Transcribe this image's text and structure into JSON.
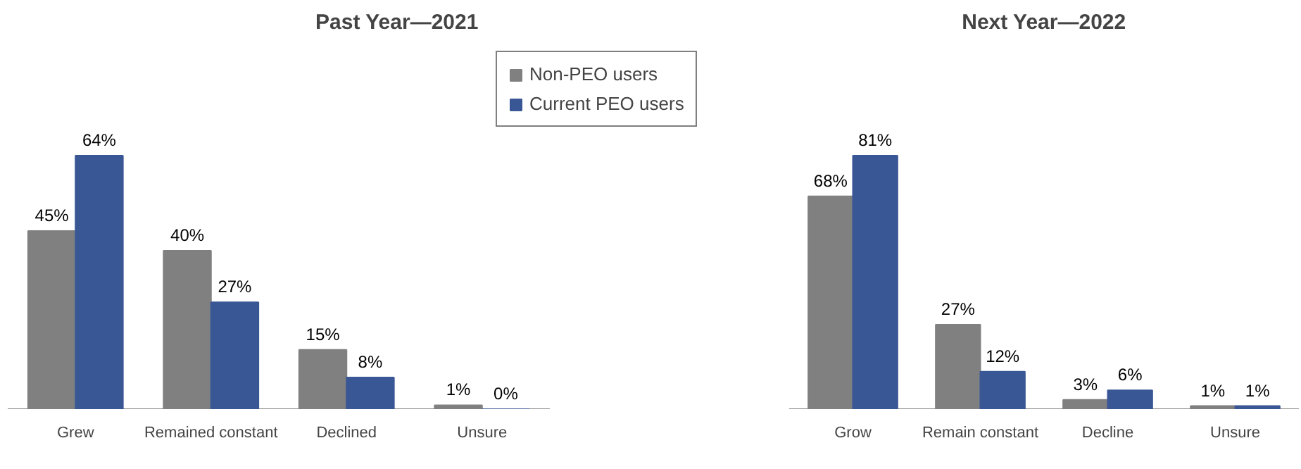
{
  "chart_data": [
    {
      "type": "bar",
      "title": "Past Year—2021",
      "categories": [
        "Grew",
        "Remained constant",
        "Declined",
        "Unsure"
      ],
      "legend": "top right",
      "grid": false,
      "series": [
        {
          "name": "Non-PEO users",
          "color": "#808080",
          "values": [
            45,
            40,
            15,
            1
          ],
          "value_labels": [
            "45%",
            "40%",
            "15%",
            "1%"
          ]
        },
        {
          "name": "Current PEO users",
          "color": "#3a5795",
          "values": [
            64,
            27,
            8,
            0
          ],
          "value_labels": [
            "64%",
            "27%",
            "8%",
            "0%"
          ]
        }
      ]
    },
    {
      "type": "bar",
      "title": "Next Year—2022",
      "categories": [
        "Grow",
        "Remain constant",
        "Decline",
        "Unsure"
      ],
      "grid": false,
      "series": [
        {
          "color": "#808080",
          "values": [
            68,
            27,
            3,
            1
          ],
          "value_labels": [
            "68%",
            "27%",
            "3%",
            "1%"
          ]
        },
        {
          "color": "#3a5795",
          "values": [
            81,
            12,
            6,
            1
          ],
          "value_labels": [
            "81%",
            "12%",
            "6%",
            "1%"
          ]
        }
      ]
    }
  ]
}
